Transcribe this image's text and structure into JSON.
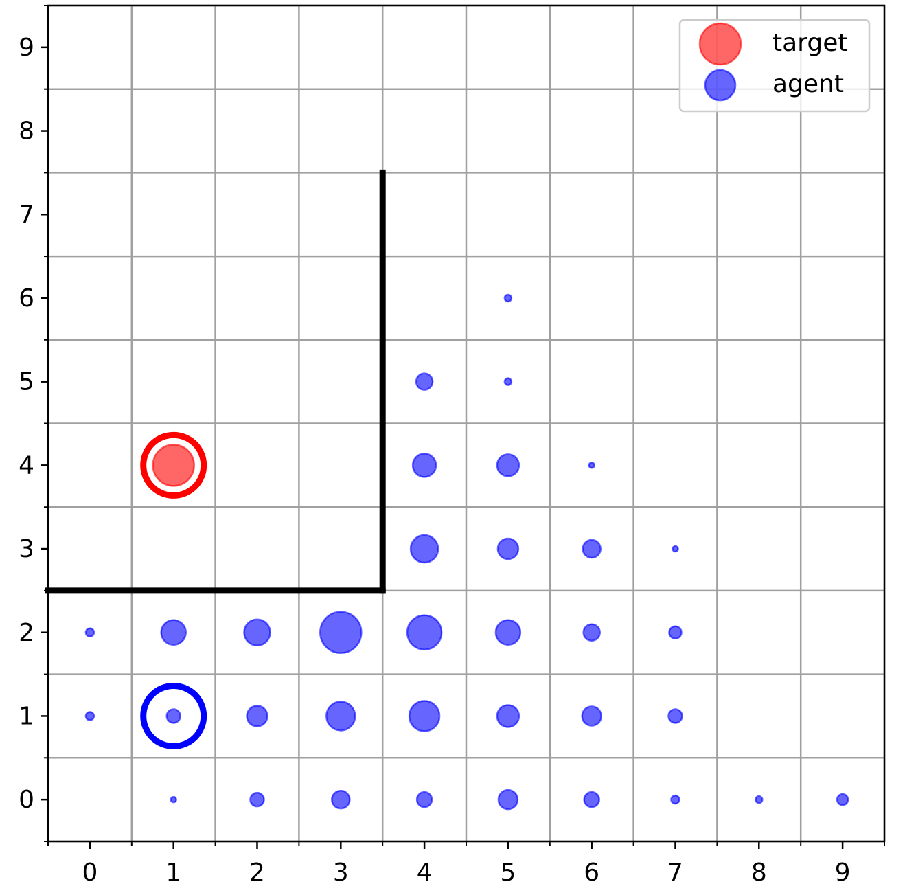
{
  "chart_data": {
    "type": "scatter",
    "xlim": [
      -0.5,
      9.5
    ],
    "ylim": [
      -0.5,
      9.5
    ],
    "xticks": [
      0,
      1,
      2,
      3,
      4,
      5,
      6,
      7,
      8,
      9
    ],
    "yticks": [
      0,
      1,
      2,
      3,
      4,
      5,
      6,
      7,
      8,
      9
    ],
    "xminor": [
      -0.5,
      0.5,
      1.5,
      2.5,
      3.5,
      4.5,
      5.5,
      6.5,
      7.5,
      8.5,
      9.5
    ],
    "yminor": [
      -0.5,
      0.5,
      1.5,
      2.5,
      3.5,
      4.5,
      5.5,
      6.5,
      7.5,
      8.5,
      9.5
    ],
    "grid": true,
    "legend": "upper right",
    "alpha": 0.6,
    "series": [
      {
        "name": "target",
        "color": "#ff0000",
        "x": [
          1
        ],
        "values": [
          4
        ],
        "sizes": [
          30
        ]
      },
      {
        "name": "agent",
        "color": "#0000ff",
        "x": [
          1,
          2,
          3,
          4,
          5,
          6,
          7,
          8,
          9,
          0,
          1,
          2,
          3,
          4,
          5,
          6,
          7,
          0,
          1,
          2,
          3,
          4,
          5,
          6,
          7,
          4,
          5,
          6,
          7,
          4,
          5,
          6,
          4,
          5,
          5
        ],
        "values": [
          0,
          0,
          0,
          0,
          0,
          0,
          0,
          0,
          0,
          1,
          1,
          1,
          1,
          1,
          1,
          1,
          1,
          2,
          2,
          2,
          2,
          2,
          2,
          2,
          2,
          3,
          3,
          3,
          3,
          4,
          4,
          4,
          5,
          5,
          6
        ],
        "sizes": [
          4,
          10,
          13,
          11,
          14,
          11,
          6,
          5,
          8,
          6,
          10,
          15,
          21,
          22,
          16,
          14,
          10,
          6,
          18,
          19,
          30,
          25,
          18,
          12,
          9,
          20,
          15,
          13,
          4,
          17,
          16,
          4,
          12,
          5,
          5
        ]
      }
    ],
    "rings": [
      {
        "x": 1,
        "y": 4,
        "color": "#ff0000"
      },
      {
        "x": 1,
        "y": 1,
        "color": "#0000ff"
      }
    ],
    "walls": [
      {
        "x": [
          -0.5,
          3.5
        ],
        "y": [
          2.5,
          2.5
        ]
      },
      {
        "x": [
          3.5,
          3.5
        ],
        "y": [
          2.5,
          7.5
        ]
      }
    ]
  }
}
